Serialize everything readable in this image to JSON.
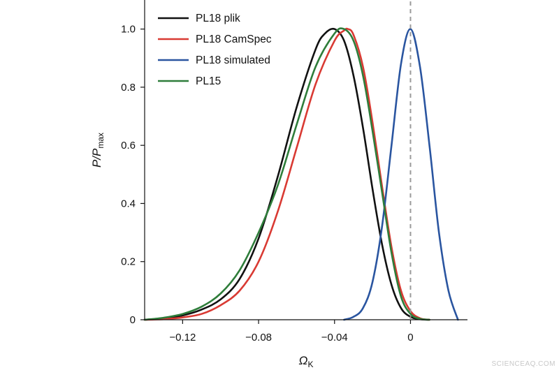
{
  "chart_data": {
    "type": "line",
    "title": "",
    "xlabel": "Ω",
    "xlabel_subscript": "K",
    "ylabel_main": "P/P",
    "ylabel_subscript": "max",
    "xlim": [
      -0.14,
      0.03
    ],
    "ylim": [
      0,
      1.1
    ],
    "xticks": [
      -0.12,
      -0.08,
      -0.04,
      0
    ],
    "xtick_labels": [
      "−0.12",
      "−0.08",
      "−0.04",
      "0"
    ],
    "yticks": [
      0,
      0.2,
      0.4,
      0.6,
      0.8,
      1.0
    ],
    "ytick_labels": [
      "0",
      "0.2",
      "0.4",
      "0.6",
      "0.8",
      "1.0"
    ],
    "grid": false,
    "legend_position": "top-left",
    "reference_line": {
      "x": 0,
      "style": "dashed",
      "color": "#9a9a9a"
    },
    "series": [
      {
        "name": "PL18 plik",
        "color": "#111111",
        "x": [
          -0.14,
          -0.13,
          -0.12,
          -0.11,
          -0.1,
          -0.09,
          -0.08,
          -0.07,
          -0.06,
          -0.05,
          -0.045,
          -0.04,
          -0.035,
          -0.03,
          -0.025,
          -0.02,
          -0.015,
          -0.01,
          -0.005,
          0,
          0.005,
          0.01
        ],
        "y": [
          0.0,
          0.005,
          0.015,
          0.035,
          0.07,
          0.14,
          0.28,
          0.49,
          0.73,
          0.93,
          0.985,
          1.0,
          0.96,
          0.84,
          0.66,
          0.45,
          0.26,
          0.12,
          0.04,
          0.01,
          0.002,
          0.0
        ]
      },
      {
        "name": "PL18 CamSpec",
        "color": "#d93a33",
        "x": [
          -0.14,
          -0.13,
          -0.12,
          -0.11,
          -0.1,
          -0.09,
          -0.08,
          -0.07,
          -0.06,
          -0.05,
          -0.04,
          -0.035,
          -0.033,
          -0.03,
          -0.025,
          -0.02,
          -0.015,
          -0.01,
          -0.005,
          0,
          0.005,
          0.01
        ],
        "y": [
          0.0,
          0.002,
          0.008,
          0.02,
          0.05,
          0.1,
          0.2,
          0.37,
          0.59,
          0.81,
          0.96,
          0.995,
          1.0,
          0.98,
          0.87,
          0.68,
          0.46,
          0.25,
          0.1,
          0.03,
          0.005,
          0.0
        ]
      },
      {
        "name": "PL18 simulated",
        "color": "#2a55a0",
        "x": [
          -0.035,
          -0.03,
          -0.025,
          -0.02,
          -0.015,
          -0.01,
          -0.005,
          0,
          0.005,
          0.01,
          0.015,
          0.02,
          0.025
        ],
        "y": [
          0.0,
          0.01,
          0.04,
          0.13,
          0.32,
          0.6,
          0.88,
          1.0,
          0.87,
          0.6,
          0.3,
          0.1,
          0.0
        ]
      },
      {
        "name": "PL15",
        "color": "#2e7d3a",
        "x": [
          -0.14,
          -0.13,
          -0.12,
          -0.11,
          -0.1,
          -0.09,
          -0.08,
          -0.07,
          -0.06,
          -0.05,
          -0.04,
          -0.035,
          -0.03,
          -0.025,
          -0.02,
          -0.015,
          -0.01,
          -0.005,
          0,
          0.005,
          0.01
        ],
        "y": [
          0.0,
          0.007,
          0.02,
          0.045,
          0.09,
          0.17,
          0.3,
          0.46,
          0.67,
          0.87,
          0.985,
          1.0,
          0.96,
          0.84,
          0.65,
          0.44,
          0.23,
          0.08,
          0.02,
          0.003,
          0.0
        ]
      }
    ]
  },
  "watermark": "SCIENCEAQ.COM"
}
